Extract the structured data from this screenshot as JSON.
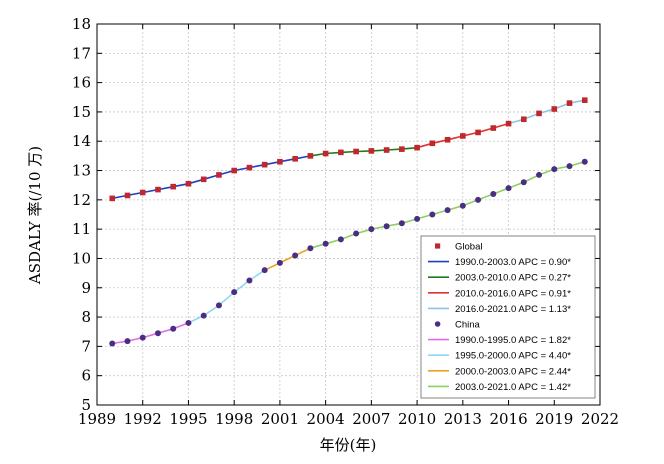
{
  "chart_data": {
    "type": "line",
    "xlabel": "年份(年)",
    "ylabel": "ASDALY 率(/10 万)",
    "xlim": [
      1989,
      2022
    ],
    "ylim": [
      5,
      18
    ],
    "x_ticks": [
      "1989",
      "1992",
      "1995",
      "1998",
      "2001",
      "2004",
      "2007",
      "2010",
      "2013",
      "2016",
      "2019",
      "2022"
    ],
    "y_ticks": [
      "5",
      "6",
      "7",
      "8",
      "9",
      "10",
      "11",
      "12",
      "13",
      "14",
      "15",
      "16",
      "17",
      "18"
    ],
    "grid": true,
    "legend_position": "bottom-right",
    "colors": {
      "global_points": "#c0282d",
      "china_points": "#4b2e83",
      "seg_blue": "#1f3fbf",
      "seg_dark_green": "#1f7a1f",
      "seg_red": "#e03030",
      "seg_light_blue": "#8ec3e6",
      "seg_violet": "#e070e0",
      "seg_cyan": "#8fd8f0",
      "seg_orange": "#f0a020",
      "seg_light_green": "#8cd060"
    },
    "series": [
      {
        "name": "Global",
        "marker": "square",
        "color": "#c0282d",
        "x": [
          1990,
          1991,
          1992,
          1993,
          1994,
          1995,
          1996,
          1997,
          1998,
          1999,
          2000,
          2001,
          2002,
          2003,
          2004,
          2005,
          2006,
          2007,
          2008,
          2009,
          2010,
          2011,
          2012,
          2013,
          2014,
          2015,
          2016,
          2017,
          2018,
          2019,
          2020,
          2021
        ],
        "y": [
          12.05,
          12.15,
          12.25,
          12.35,
          12.45,
          12.55,
          12.7,
          12.85,
          13.0,
          13.1,
          13.2,
          13.3,
          13.4,
          13.5,
          13.58,
          13.62,
          13.65,
          13.67,
          13.7,
          13.73,
          13.78,
          13.93,
          14.05,
          14.18,
          14.3,
          14.45,
          14.6,
          14.75,
          14.95,
          15.1,
          15.3,
          15.4
        ]
      },
      {
        "name": "China",
        "marker": "circle",
        "color": "#4b2e83",
        "x": [
          1990,
          1991,
          1992,
          1993,
          1994,
          1995,
          1996,
          1997,
          1998,
          1999,
          2000,
          2001,
          2002,
          2003,
          2004,
          2005,
          2006,
          2007,
          2008,
          2009,
          2010,
          2011,
          2012,
          2013,
          2014,
          2015,
          2016,
          2017,
          2018,
          2019,
          2020,
          2021
        ],
        "y": [
          7.1,
          7.18,
          7.3,
          7.45,
          7.6,
          7.8,
          8.05,
          8.4,
          8.85,
          9.25,
          9.6,
          9.85,
          10.1,
          10.35,
          10.5,
          10.65,
          10.85,
          11.0,
          11.1,
          11.2,
          11.35,
          11.5,
          11.65,
          11.8,
          12.0,
          12.2,
          12.4,
          12.6,
          12.85,
          13.05,
          13.15,
          13.3
        ]
      }
    ],
    "legend": [
      {
        "type": "marker",
        "marker": "square",
        "color": "#c0282d",
        "label": "Global"
      },
      {
        "type": "line",
        "color": "#1f3fbf",
        "label": "1990.0-2003.0 APC  = 0.90*"
      },
      {
        "type": "line",
        "color": "#1f7a1f",
        "label": "2003.0-2010.0 APC  = 0.27*"
      },
      {
        "type": "line",
        "color": "#e03030",
        "label": "2010.0-2016.0 APC  = 0.91*"
      },
      {
        "type": "line",
        "color": "#8ec3e6",
        "label": "2016.0-2021.0 APC  = 1.13*"
      },
      {
        "type": "marker",
        "marker": "circle",
        "color": "#4b2e83",
        "label": "China"
      },
      {
        "type": "line",
        "color": "#e070e0",
        "label": "1990.0-1995.0 APC  = 1.82*"
      },
      {
        "type": "line",
        "color": "#8fd8f0",
        "label": "1995.0-2000.0 APC  = 4.40*"
      },
      {
        "type": "line",
        "color": "#f0a020",
        "label": "2000.0-2003.0 APC  = 2.44*"
      },
      {
        "type": "line",
        "color": "#8cd060",
        "label": "2003.0-2021.0 APC  = 1.42*"
      }
    ],
    "segments": [
      {
        "series": "Global",
        "start": 1990,
        "end": 2003,
        "color": "#1f3fbf"
      },
      {
        "series": "Global",
        "start": 2003,
        "end": 2010,
        "color": "#1f7a1f"
      },
      {
        "series": "Global",
        "start": 2010,
        "end": 2016,
        "color": "#e03030"
      },
      {
        "series": "Global",
        "start": 2016,
        "end": 2021,
        "color": "#8ec3e6"
      },
      {
        "series": "China",
        "start": 1990,
        "end": 1995,
        "color": "#e070e0"
      },
      {
        "series": "China",
        "start": 1995,
        "end": 2000,
        "color": "#8fd8f0"
      },
      {
        "series": "China",
        "start": 2000,
        "end": 2003,
        "color": "#f0a020"
      },
      {
        "series": "China",
        "start": 2003,
        "end": 2021,
        "color": "#8cd060"
      }
    ]
  }
}
